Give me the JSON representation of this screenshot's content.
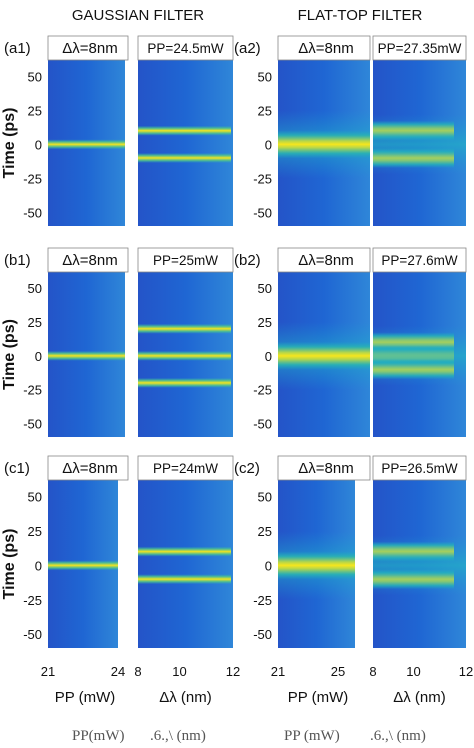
{
  "columns": [
    {
      "title": "GAUSSIAN FILTER"
    },
    {
      "title": "FLAT-TOP FILTER"
    }
  ],
  "y_axis": {
    "label": "Time (ps)",
    "ticks": [
      "50",
      "25",
      "0",
      "-25",
      "-50"
    ],
    "range": [
      -60,
      62
    ]
  },
  "x_axis": {
    "left": {
      "label": "PP (mW)",
      "ticks_gauss": [
        "21",
        "24"
      ],
      "ticks_flat": [
        "21",
        "25"
      ]
    },
    "right": {
      "label": "Δλ (nm)",
      "ticks": [
        "8",
        "10",
        "12"
      ]
    }
  },
  "footer": {
    "left_a": "PP(mW)",
    "left_b": ".6.,\\ (nm)",
    "right_a": "PP (mW)",
    "right_b": ".6.,\\ (nm)"
  },
  "colors": {
    "background": "#1e5fd0",
    "mid": "#22a7b8",
    "peak": "#f2e21e"
  },
  "chart_data": [
    {
      "id": "a1",
      "type": "heatmap",
      "tag": "(a1)",
      "left_label": "Δλ=8nm",
      "right_label": "PP=24.5mW",
      "filter": "gaussian",
      "xlim_pp": [
        21,
        24
      ],
      "xlim_dl": [
        8,
        12
      ],
      "pulse_times_ps": [
        10,
        -10
      ]
    },
    {
      "id": "a2",
      "type": "heatmap",
      "tag": "(a2)",
      "left_label": "Δλ=8nm",
      "right_label": "PP=27.35mW",
      "filter": "flat-top",
      "xlim_pp": [
        21,
        27
      ],
      "xlim_dl": [
        8,
        12
      ],
      "pulse_times_ps": [
        10,
        -10
      ]
    },
    {
      "id": "b1",
      "type": "heatmap",
      "tag": "(b1)",
      "left_label": "Δλ=8nm",
      "right_label": "PP=25mW",
      "filter": "gaussian",
      "xlim_pp": [
        21,
        24
      ],
      "xlim_dl": [
        8,
        12
      ],
      "pulse_times_ps": [
        20,
        0,
        -20
      ]
    },
    {
      "id": "b2",
      "type": "heatmap",
      "tag": "(b2)",
      "left_label": "Δλ=8nm",
      "right_label": "PP=27.6mW",
      "filter": "flat-top",
      "xlim_pp": [
        21,
        27
      ],
      "xlim_dl": [
        8,
        12
      ],
      "pulse_times_ps": [
        10,
        0,
        -10
      ]
    },
    {
      "id": "c1",
      "type": "heatmap",
      "tag": "(c1)",
      "left_label": "Δλ=8nm",
      "right_label": "PP=24mW",
      "filter": "gaussian",
      "xlim_pp": [
        21,
        24
      ],
      "xlim_dl": [
        8,
        12
      ],
      "pulse_times_ps": [
        10,
        -10
      ]
    },
    {
      "id": "c2",
      "type": "heatmap",
      "tag": "(c2)",
      "left_label": "Δλ=8nm",
      "right_label": "PP=26.5mW",
      "filter": "flat-top",
      "xlim_pp": [
        21,
        27
      ],
      "xlim_dl": [
        8,
        12
      ],
      "pulse_times_ps": [
        10,
        -10
      ]
    }
  ]
}
